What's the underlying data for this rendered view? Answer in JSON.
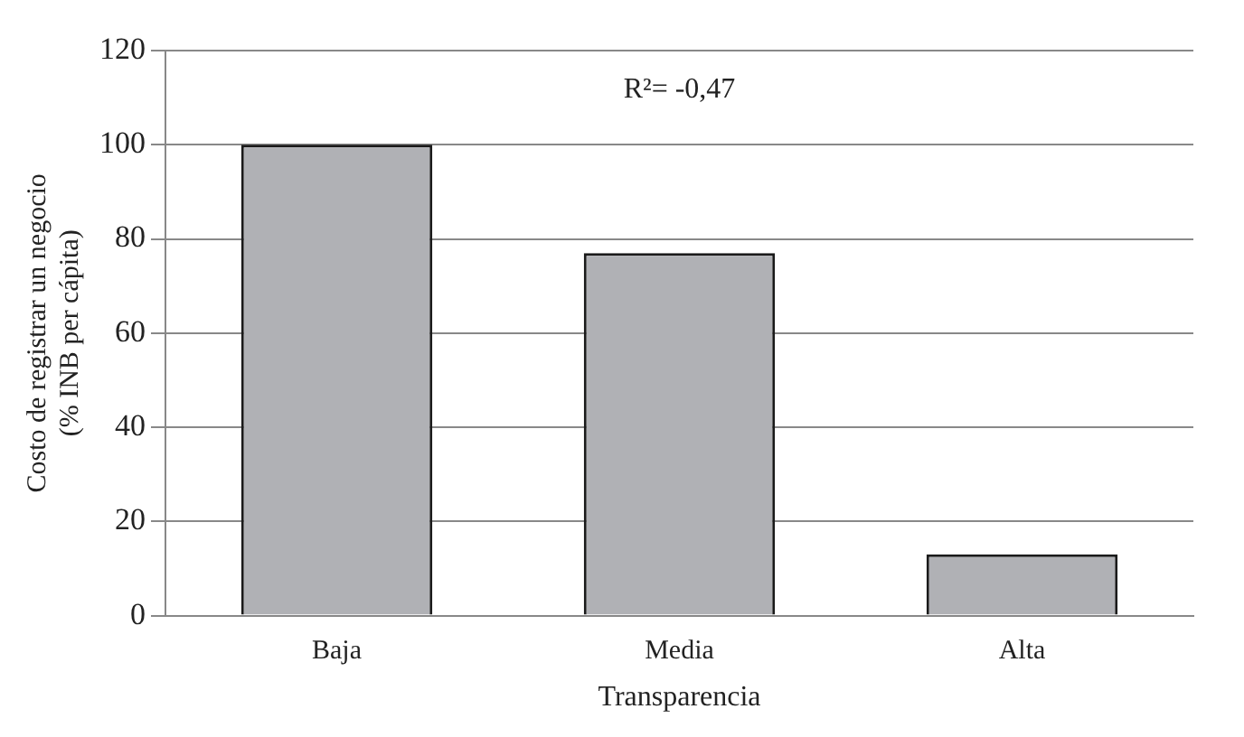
{
  "chart_data": {
    "type": "bar",
    "xlabel": "Transparencia",
    "ylabel": "Costo de registrar un negocio\n(% INB per cápita)",
    "categories": [
      "Baja",
      "Media",
      "Alta"
    ],
    "values": [
      100,
      77,
      13
    ],
    "color": "#b0b1b5",
    "ylim": [
      0,
      120
    ],
    "yticks": [
      0,
      20,
      40,
      60,
      80,
      100,
      120
    ],
    "grid": "y",
    "annotations": [
      "R²= -0,47"
    ]
  }
}
